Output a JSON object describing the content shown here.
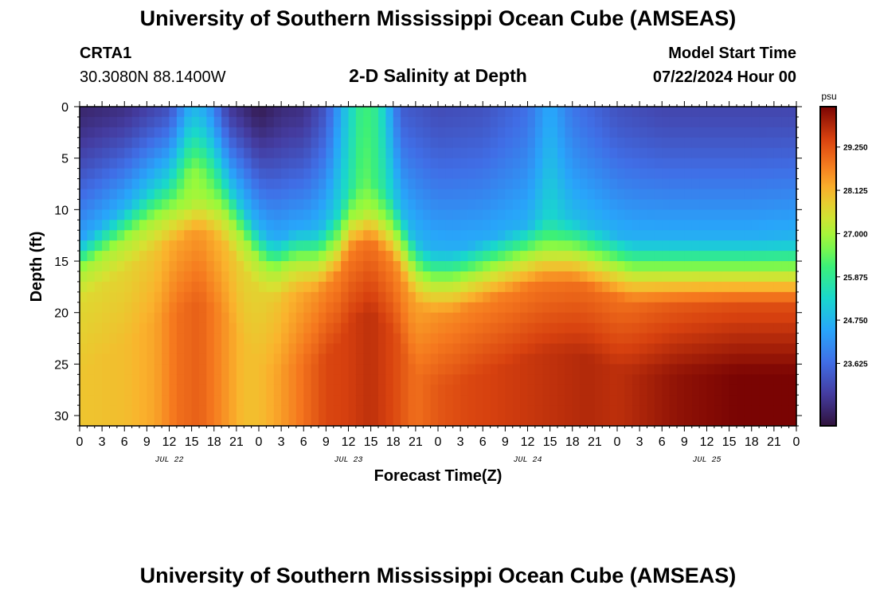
{
  "header": {
    "title": "University of Southern Mississippi Ocean Cube (AMSEAS)",
    "station_id": "CRTA1",
    "coordinates": "30.3080N  88.1400W",
    "plot_title": "2-D Salinity at Depth",
    "model_start_label": "Model Start Time",
    "model_start_value": "07/22/2024 Hour 00"
  },
  "footer": {
    "title": "University of Southern Mississippi Ocean Cube (AMSEAS)"
  },
  "colors": {
    "axis": "#000000",
    "background": "#ffffff"
  },
  "chart_data": {
    "type": "heatmap",
    "variable": "salinity",
    "units": "psu",
    "title": "2-D Salinity at Depth",
    "xlabel": "Forecast Time(Z)",
    "ylabel": "Depth (ft)",
    "x_range_hours": [
      0,
      96
    ],
    "x_tick_step_hours": 3,
    "x_tick_labels": [
      "0",
      "3",
      "6",
      "9",
      "12",
      "15",
      "18",
      "21",
      "0",
      "3",
      "6",
      "9",
      "12",
      "15",
      "18",
      "21",
      "0",
      "3",
      "6",
      "9",
      "12",
      "15",
      "18",
      "21",
      "0",
      "3",
      "6",
      "9",
      "12",
      "15",
      "18",
      "21",
      "0"
    ],
    "date_labels": [
      {
        "label": "JUL 22",
        "hour": 12
      },
      {
        "label": "JUL 23",
        "hour": 36
      },
      {
        "label": "JUL 24",
        "hour": 60
      },
      {
        "label": "JUL 25",
        "hour": 84
      }
    ],
    "y_range_ft": [
      0,
      31
    ],
    "y_ticks": [
      0,
      5,
      10,
      15,
      20,
      25,
      30
    ],
    "y_tick_labels": [
      "0",
      "5",
      "10",
      "15",
      "20",
      "25",
      "30"
    ],
    "colorbar": {
      "label": "psu",
      "min": 22.0,
      "max": 30.3,
      "ticks": [
        23.625,
        24.75,
        25.875,
        27.0,
        28.125,
        29.25
      ],
      "tick_labels": [
        "23.625",
        "24.750",
        "25.875",
        "27.000",
        "28.125",
        "29.250"
      ]
    },
    "halocline": {
      "hours": [
        0,
        4,
        8,
        10,
        13,
        16,
        19,
        22,
        24,
        26,
        29,
        32,
        35,
        36,
        39,
        42,
        45,
        47,
        50,
        54,
        58,
        62,
        66,
        70,
        74,
        78,
        82,
        86,
        90,
        94,
        96
      ],
      "depth_ft": [
        16,
        14,
        12,
        11,
        10,
        9,
        10,
        13,
        15,
        16,
        15,
        15,
        13,
        11,
        10,
        12,
        16,
        17,
        17,
        16,
        15,
        14,
        14,
        15,
        16,
        16,
        16,
        16,
        16,
        16,
        16
      ]
    },
    "surface_salinity": {
      "hours": [
        0,
        6,
        12,
        15,
        17,
        20,
        24,
        27,
        30,
        33,
        36,
        38,
        40,
        43,
        48,
        54,
        60,
        63,
        66,
        72,
        78,
        84,
        90,
        96
      ],
      "psu": [
        22.4,
        22.6,
        23.2,
        24.8,
        24.5,
        22.8,
        22.2,
        22.5,
        22.6,
        23.3,
        25.2,
        26.2,
        25.8,
        23.4,
        23.1,
        23.2,
        23.7,
        24.6,
        23.8,
        23.2,
        23.0,
        23.0,
        23.0,
        23.0
      ]
    },
    "upper_layer_salinity": {
      "hours": [
        0,
        6,
        12,
        15,
        17,
        20,
        24,
        27,
        30,
        33,
        36,
        38,
        40,
        43,
        48,
        54,
        60,
        63,
        66,
        72,
        78,
        84,
        90,
        96
      ],
      "psu": [
        24.5,
        24.8,
        25.4,
        26.8,
        26.4,
        25.2,
        24.8,
        24.6,
        24.6,
        24.9,
        25.6,
        26.5,
        26.0,
        24.9,
        24.7,
        24.6,
        24.7,
        25.4,
        24.9,
        24.7,
        24.7,
        24.7,
        24.7,
        24.8
      ]
    },
    "bottom_salinity": {
      "hours": [
        0,
        6,
        10,
        13,
        16,
        19,
        22,
        24,
        27,
        30,
        33,
        36,
        39,
        42,
        45,
        48,
        52,
        56,
        60,
        64,
        68,
        72,
        76,
        80,
        84,
        88,
        92,
        96
      ],
      "psu": [
        27.9,
        28.0,
        28.3,
        28.9,
        29.1,
        28.6,
        28.0,
        28.0,
        28.4,
        28.9,
        29.4,
        29.5,
        29.7,
        29.4,
        28.9,
        29.2,
        29.4,
        29.5,
        29.6,
        29.7,
        29.8,
        29.7,
        29.9,
        30.1,
        30.2,
        30.3,
        30.3,
        30.3
      ]
    }
  }
}
